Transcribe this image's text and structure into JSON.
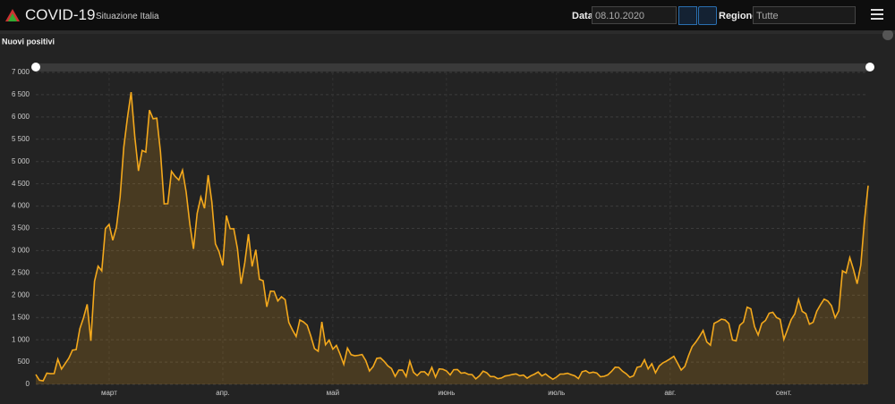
{
  "header": {
    "title": "COVID-19",
    "subtitle": "Situazione Italia",
    "date_label": "Data",
    "date_value": "08.10.2020",
    "region_label": "Regione",
    "region_value": "Tutte"
  },
  "chart_data": {
    "type": "line",
    "title": "Nuovi positivi",
    "color": "#f3a81c",
    "grid": true,
    "ylim": [
      0,
      7000
    ],
    "yticks": [
      0,
      500,
      {
        "value": 1000,
        "label": "1 000"
      },
      {
        "value": 1500,
        "label": "1 500"
      },
      {
        "value": 2000,
        "label": "2 000"
      },
      {
        "value": 2500,
        "label": "2 500"
      },
      {
        "value": 3000,
        "label": "3 000"
      },
      {
        "value": 3500,
        "label": "3 500"
      },
      {
        "value": 4000,
        "label": "4 000"
      },
      {
        "value": 4500,
        "label": "4 500"
      },
      {
        "value": 5000,
        "label": "5 000"
      },
      {
        "value": 5500,
        "label": "5 500"
      },
      {
        "value": 6000,
        "label": "6 000"
      },
      {
        "value": 6500,
        "label": "6 500"
      },
      {
        "value": 7000,
        "label": "7 000"
      }
    ],
    "categories": [
      null,
      null,
      null,
      null,
      null,
      null,
      null,
      null,
      null,
      null,
      null,
      null,
      null,
      null,
      null,
      null,
      null,
      null,
      null,
      null,
      "март",
      null,
      null,
      null,
      null,
      null,
      null,
      null,
      null,
      null,
      null,
      null,
      null,
      null,
      null,
      null,
      null,
      null,
      null,
      null,
      null,
      null,
      null,
      null,
      null,
      null,
      null,
      null,
      null,
      null,
      null,
      "апр.",
      null,
      null,
      null,
      null,
      null,
      null,
      null,
      null,
      null,
      null,
      null,
      null,
      null,
      null,
      null,
      null,
      null,
      null,
      null,
      null,
      null,
      null,
      null,
      null,
      null,
      null,
      null,
      null,
      null,
      "май",
      null,
      null,
      null,
      null,
      null,
      null,
      null,
      null,
      null,
      null,
      null,
      null,
      null,
      null,
      null,
      null,
      null,
      null,
      null,
      null,
      null,
      null,
      null,
      null,
      null,
      null,
      null,
      null,
      null,
      null,
      "июнь",
      null,
      null,
      null,
      null,
      null,
      null,
      null,
      null,
      null,
      null,
      null,
      null,
      null,
      null,
      null,
      null,
      null,
      null,
      null,
      null,
      null,
      null,
      null,
      null,
      null,
      null,
      null,
      null,
      null,
      "июль",
      null,
      null,
      null,
      null,
      null,
      null,
      null,
      null,
      null,
      null,
      null,
      null,
      null,
      null,
      null,
      null,
      null,
      null,
      null,
      null,
      null,
      null,
      null,
      null,
      null,
      null,
      null,
      null,
      null,
      null,
      "авг.",
      null,
      null,
      null,
      null,
      null,
      null,
      null,
      null,
      null,
      null,
      null,
      null,
      null,
      null,
      null,
      null,
      null,
      null,
      null,
      null,
      null,
      null,
      null,
      null,
      null,
      null,
      null,
      null,
      null,
      null,
      "сент.",
      null,
      null,
      null,
      null,
      null,
      null,
      null,
      null,
      null,
      null,
      null,
      null,
      null,
      null,
      null,
      null,
      null,
      null,
      null,
      null,
      null,
      null,
      null
    ],
    "values": [
      221,
      93,
      78,
      250,
      238,
      240,
      566,
      342,
      466,
      587,
      769,
      778,
      1247,
      1492,
      1797,
      977,
      2313,
      2651,
      2547,
      3497,
      3590,
      3233,
      3526,
      4207,
      5322,
      5986,
      6557,
      5560,
      4789,
      5249,
      5210,
      6153,
      5959,
      5974,
      5217,
      4050,
      4053,
      4782,
      4668,
      4585,
      4805,
      4316,
      3599,
      3039,
      3836,
      4204,
      3951,
      4694,
      4092,
      3153,
      2972,
      2667,
      3786,
      3493,
      3491,
      3047,
      2256,
      2729,
      3370,
      2646,
      3021,
      2357,
      2324,
      1739,
      2091,
      2086,
      1872,
      1965,
      1900,
      1389,
      1221,
      1075,
      1444,
      1401,
      1327,
      1083,
      802,
      744,
      1402,
      888,
      992,
      789,
      875,
      675,
      451,
      813,
      665,
      642,
      652,
      669,
      531,
      300,
      397,
      584,
      593,
      516,
      416,
      355,
      178,
      318,
      321,
      177,
      518,
      270,
      197,
      280,
      283,
      202,
      379,
      163,
      346,
      338,
      301,
      210,
      329,
      333,
      251,
      262,
      224,
      218,
      122,
      190,
      296,
      259,
      175,
      174,
      126,
      142,
      187,
      201,
      223,
      235,
      192,
      208,
      138,
      193,
      229,
      276,
      188,
      234,
      169,
      114,
      162,
      230,
      233,
      249,
      219,
      190,
      129,
      282,
      306,
      252,
      275,
      255,
      170,
      181,
      212,
      289,
      386,
      379,
      295,
      239,
      159,
      190,
      384,
      402,
      552,
      347,
      463,
      259,
      412,
      481,
      523,
      574,
      629,
      479,
      320,
      403,
      642,
      845,
      947,
      1071,
      1210,
      953,
      878,
      1367,
      1411,
      1462,
      1444,
      1365,
      996,
      975,
      1326,
      1397,
      1733,
      1695,
      1297,
      1108,
      1370,
      1434,
      1597,
      1616,
      1501,
      1458,
      1008,
      1229,
      1452,
      1585,
      1907,
      1638,
      1587,
      1350,
      1392,
      1640,
      1786,
      1912,
      1869,
      1766,
      1494,
      1648,
      2548,
      2499,
      2844,
      2578,
      2257,
      2677,
      3678,
      4458
    ]
  }
}
